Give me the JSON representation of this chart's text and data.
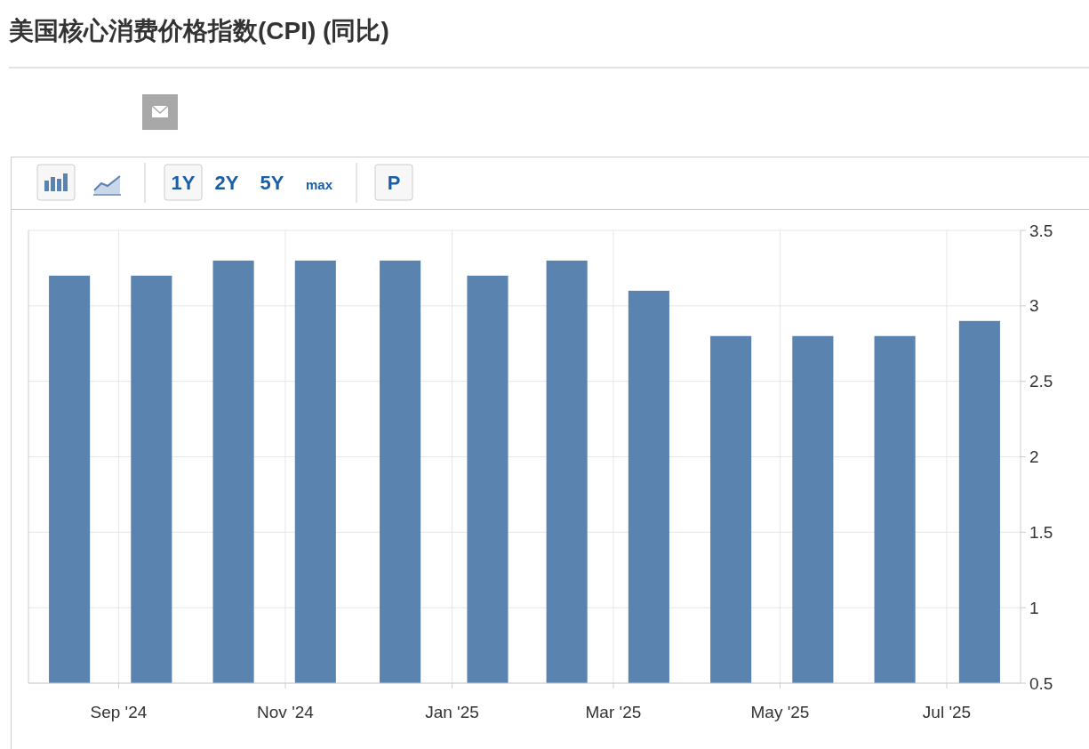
{
  "chart_data": {
    "type": "bar",
    "title": "美国核心消费价格指数(CPI) (同比)",
    "annotations": [
      "1Y",
      "2Y",
      "5Y",
      "max",
      "P"
    ],
    "x": [
      "2024-08-14",
      "2024-09-13",
      "2024-10-13",
      "2024-11-12",
      "2024-12-13",
      "2025-01-14",
      "2025-02-12",
      "2025-03-14",
      "2025-04-13",
      "2025-05-13",
      "2025-06-12",
      "2025-07-13"
    ],
    "values": [
      3.2,
      3.2,
      3.3,
      3.3,
      3.3,
      3.2,
      3.3,
      3.1,
      2.8,
      2.8,
      2.8,
      2.9
    ],
    "color": "#5b83b0",
    "xlim": [
      "2024-07-30",
      "2025-07-28"
    ],
    "xticks": [
      {
        "value": "2024-09-01",
        "label": "Sep '24"
      },
      {
        "value": "2024-11-01",
        "label": "Nov '24"
      },
      {
        "value": "2025-01-01",
        "label": "Jan '25"
      },
      {
        "value": "2025-03-01",
        "label": "Mar '25"
      },
      {
        "value": "2025-05-01",
        "label": "May '25"
      },
      {
        "value": "2025-07-01",
        "label": "Jul '25"
      }
    ],
    "ylim": [
      0.5,
      3.5
    ],
    "yticks": [
      0.5,
      1,
      1.5,
      2,
      2.5,
      3,
      3.5
    ],
    "grid": true
  }
}
